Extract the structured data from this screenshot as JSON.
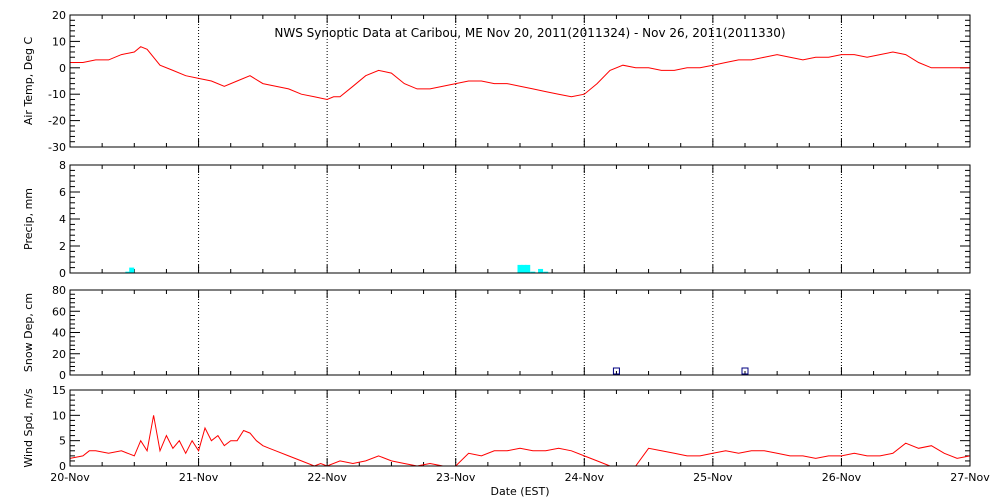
{
  "chart_data": {
    "title": "NWS Synoptic Data at Caribou, ME    Nov 20, 2011(2011324) - Nov 26, 2011(2011330)",
    "xlabel": "Date (EST)",
    "x_range": [
      "2011-11-20",
      "2011-11-27"
    ],
    "x_tick_labels": [
      "20-Nov",
      "21-Nov",
      "22-Nov",
      "23-Nov",
      "24-Nov",
      "25-Nov",
      "26-Nov",
      "27-Nov"
    ],
    "grid": "dotted vertical lines at each day",
    "panels": [
      {
        "type": "line",
        "ylabel": "Air Temp, Deg C",
        "ylim": [
          -30,
          20
        ],
        "yticks": [
          -30,
          -20,
          -10,
          0,
          10,
          20
        ],
        "color": "#ff0000",
        "x_days": [
          0.0,
          0.1,
          0.2,
          0.3,
          0.4,
          0.5,
          0.55,
          0.6,
          0.7,
          0.8,
          0.9,
          1.0,
          1.1,
          1.2,
          1.3,
          1.4,
          1.5,
          1.6,
          1.7,
          1.8,
          1.9,
          2.0,
          2.05,
          2.1,
          2.2,
          2.3,
          2.4,
          2.5,
          2.6,
          2.7,
          2.8,
          2.9,
          3.0,
          3.1,
          3.2,
          3.3,
          3.4,
          3.5,
          3.6,
          3.7,
          3.8,
          3.9,
          4.0,
          4.1,
          4.2,
          4.3,
          4.4,
          4.5,
          4.6,
          4.7,
          4.8,
          4.9,
          5.0,
          5.1,
          5.2,
          5.3,
          5.4,
          5.5,
          5.6,
          5.7,
          5.8,
          5.9,
          6.0,
          6.1,
          6.2,
          6.3,
          6.4,
          6.5,
          6.6,
          6.7,
          6.8,
          6.9,
          7.0
        ],
        "values": [
          2,
          2,
          3,
          3,
          5,
          6,
          8,
          7,
          1,
          -1,
          -3,
          -4,
          -5,
          -7,
          -5,
          -3,
          -6,
          -7,
          -8,
          -10,
          -11,
          -12,
          -11,
          -11,
          -7,
          -3,
          -1,
          -2,
          -6,
          -8,
          -8,
          -7,
          -6,
          -5,
          -5,
          -6,
          -6,
          -7,
          -8,
          -9,
          -10,
          -11,
          -10,
          -6,
          -1,
          1,
          0,
          0,
          -1,
          -1,
          0,
          0,
          1,
          2,
          3,
          3,
          4,
          5,
          4,
          3,
          4,
          4,
          5,
          5,
          4,
          5,
          6,
          5,
          2,
          0,
          0,
          0,
          0
        ]
      },
      {
        "type": "bar",
        "ylabel": "Precip, mm",
        "ylim": [
          0,
          8
        ],
        "yticks": [
          0,
          2,
          4,
          6,
          8
        ],
        "color": "#00ffff",
        "x_days": [
          0.45,
          0.48,
          3.5,
          3.53,
          3.56,
          3.6,
          3.66,
          3.7
        ],
        "values": [
          0.1,
          0.4,
          0.6,
          0.6,
          0.6,
          0.1,
          0.3,
          0.1
        ]
      },
      {
        "type": "scatter",
        "ylabel": "Snow Dep, cm",
        "ylim": [
          0,
          80
        ],
        "yticks": [
          0,
          20,
          40,
          60,
          80
        ],
        "color": "#000080",
        "x_days": [
          4.25,
          5.25
        ],
        "values": [
          0,
          0
        ]
      },
      {
        "type": "line",
        "ylabel": "Wind Spd, m/s",
        "ylim": [
          0,
          15
        ],
        "yticks": [
          0,
          5,
          10,
          15
        ],
        "color": "#ff0000",
        "x_days": [
          0.0,
          0.1,
          0.15,
          0.2,
          0.3,
          0.4,
          0.5,
          0.55,
          0.6,
          0.65,
          0.7,
          0.75,
          0.8,
          0.85,
          0.9,
          0.95,
          1.0,
          1.05,
          1.1,
          1.15,
          1.2,
          1.25,
          1.3,
          1.35,
          1.4,
          1.45,
          1.5,
          1.55,
          1.6,
          1.7,
          1.8,
          1.9,
          1.95,
          2.0,
          2.1,
          2.2,
          2.3,
          2.4,
          2.5,
          2.6,
          2.7,
          2.8,
          2.9,
          3.0,
          3.1,
          3.2,
          3.3,
          3.4,
          3.5,
          3.6,
          3.7,
          3.8,
          3.9,
          4.0,
          4.1,
          4.2,
          4.3,
          4.4,
          4.5,
          4.6,
          4.7,
          4.8,
          4.9,
          5.0,
          5.1,
          5.2,
          5.3,
          5.4,
          5.5,
          5.6,
          5.7,
          5.8,
          5.9,
          6.0,
          6.1,
          6.2,
          6.3,
          6.4,
          6.5,
          6.6,
          6.7,
          6.8,
          6.9,
          7.0
        ],
        "values": [
          1.5,
          2,
          3,
          3,
          2.5,
          3,
          2,
          5,
          3,
          10,
          3,
          6,
          3.5,
          5,
          2.5,
          5,
          3,
          7.5,
          5,
          6,
          4,
          5,
          5,
          7,
          6.5,
          5,
          4,
          3.5,
          3,
          2,
          1,
          0,
          0.5,
          0,
          1,
          0.5,
          1,
          2,
          1,
          0.5,
          0,
          0.5,
          0,
          0,
          2.5,
          2,
          3,
          3,
          3.5,
          3,
          3,
          3.5,
          3,
          2,
          1,
          0,
          0,
          0,
          3.5,
          3,
          2.5,
          2,
          2,
          2.5,
          3,
          2.5,
          3,
          3,
          2.5,
          2,
          2,
          1.5,
          2,
          2,
          2.5,
          2,
          2,
          2.5,
          4.5,
          3.5,
          4,
          2.5,
          1.5,
          2
        ]
      }
    ]
  }
}
